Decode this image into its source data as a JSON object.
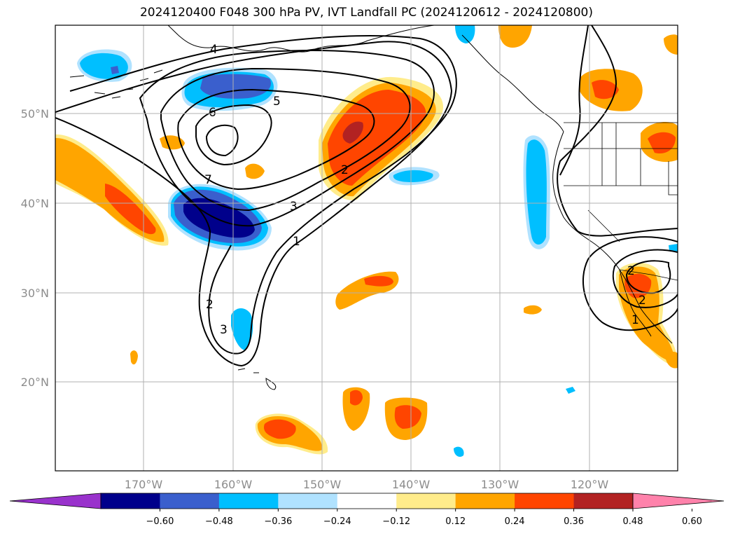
{
  "title": "2024120400 F048 300 hPa PV, IVT Landfall PC (2024120612 - 2024120800)",
  "lat_labels": [
    "50°N",
    "40°N",
    "30°N",
    "20°N"
  ],
  "lon_labels": [
    "170°W",
    "160°W",
    "150°W",
    "140°W",
    "130°W",
    "120°W"
  ],
  "colorbar": {
    "ticks": [
      "−0.60",
      "−0.48",
      "−0.36",
      "−0.24",
      "−0.12",
      "0.12",
      "0.24",
      "0.36",
      "0.48",
      "0.60"
    ],
    "colors": [
      "#9932cc",
      "#00008b",
      "#3a5fcd",
      "#00bfff",
      "#b0e2ff",
      "#ffffff",
      "#ffec8b",
      "#ffa500",
      "#ff4500",
      "#b22222",
      "#ff82ab"
    ]
  },
  "contour_labels": [
    "4",
    "5",
    "6",
    "7",
    "2",
    "3",
    "1",
    "2",
    "3",
    "2",
    "1",
    "2"
  ],
  "map": {
    "lon_range": [
      -180,
      -110
    ],
    "lat_range": [
      10,
      60
    ],
    "fields": "300 hPa PV contours; IVT landfall PC shaded"
  }
}
